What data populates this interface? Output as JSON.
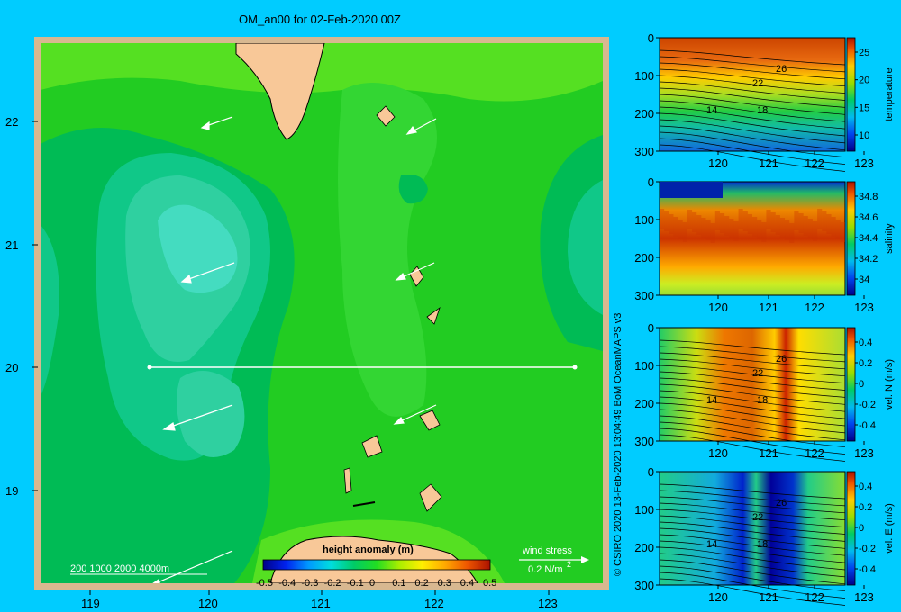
{
  "title": "OM_an00 for 02-Feb-2020 00Z",
  "credit": "© CSIRO 2020   13-Feb-2020 13:04:49 BoM OceanMAPS v3",
  "map": {
    "lat_ticks": [
      "22",
      "21",
      "20",
      "19"
    ],
    "lon_ticks": [
      "119",
      "120",
      "121",
      "122",
      "123"
    ],
    "depth_legend": "200  1000  2000  4000m",
    "colorbar": {
      "label": "height anomaly  (m)",
      "ticks": [
        "-0.5",
        "-0.4",
        "-0.3",
        "-0.2",
        "-0.1",
        "0",
        "0.1",
        "0.2",
        "0.3",
        "0.4",
        "0.5"
      ]
    },
    "wind_stress": {
      "label": "wind stress",
      "scale": "0.2 N/m",
      "unit_exp": "2"
    },
    "section_line": {
      "lat": 20,
      "lon_start": 119.5,
      "lon_end": 123.2
    }
  },
  "panels": [
    {
      "id": "temperature",
      "ylabel": "temperature",
      "cticks": [
        "25",
        "20",
        "15",
        "10"
      ],
      "contours": [
        "26",
        "22",
        "18",
        "14"
      ]
    },
    {
      "id": "salinity",
      "ylabel": "salinity",
      "cticks": [
        "34.8",
        "34.6",
        "34.4",
        "34.2",
        "34"
      ],
      "contours": []
    },
    {
      "id": "veln",
      "ylabel": "vel. N  (m/s)",
      "cticks": [
        "0.4",
        "0.2",
        "0",
        "-0.2",
        "-0.4"
      ],
      "contours": [
        "26",
        "22",
        "18",
        "14"
      ]
    },
    {
      "id": "vele",
      "ylabel": "vel. E  (m/s)",
      "cticks": [
        "0.4",
        "0.2",
        "0",
        "-0.2",
        "-0.4"
      ],
      "contours": [
        "26",
        "22",
        "18",
        "14"
      ]
    }
  ],
  "panel_axes": {
    "depth_ticks": [
      "0",
      "100",
      "200",
      "300"
    ],
    "lon_ticks": [
      "120",
      "121",
      "122",
      "123"
    ]
  }
}
